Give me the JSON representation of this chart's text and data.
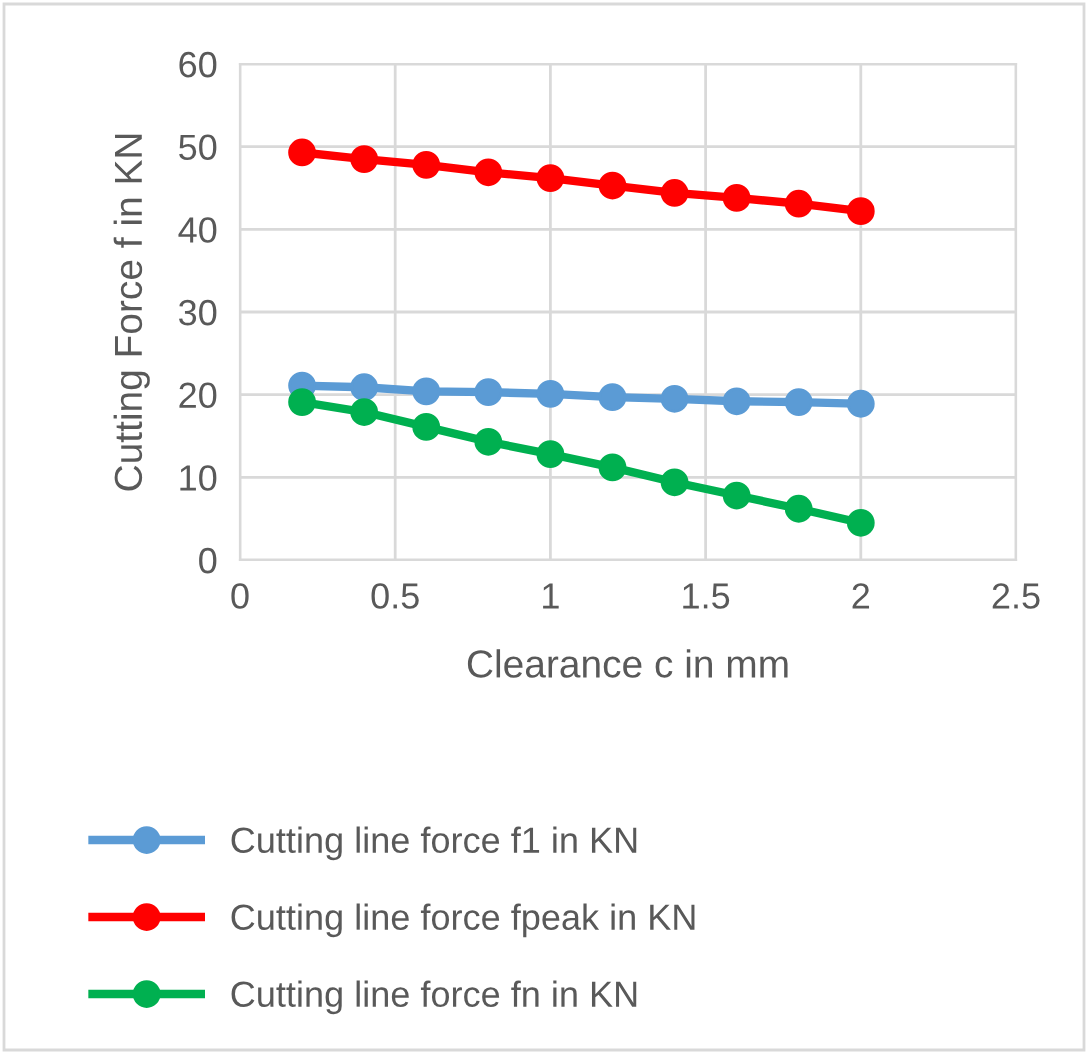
{
  "chart_data": {
    "type": "line",
    "xlabel": "Clearance c in mm",
    "ylabel": "Cutting Force f in KN",
    "x": [
      0.2,
      0.4,
      0.6,
      0.8,
      1.0,
      1.2,
      1.4,
      1.6,
      1.8,
      2.0
    ],
    "series": [
      {
        "name": "Cutting line force f1 in KN",
        "color": "#5b9bd5",
        "values": [
          21.1,
          20.9,
          20.4,
          20.3,
          20.1,
          19.7,
          19.5,
          19.2,
          19.1,
          18.9
        ]
      },
      {
        "name": "Cutting line force fpeak in KN",
        "color": "#ff0000",
        "values": [
          49.3,
          48.5,
          47.8,
          46.9,
          46.2,
          45.3,
          44.4,
          43.8,
          43.1,
          42.2
        ]
      },
      {
        "name": "Cutting line force fn in KN",
        "color": "#00b050",
        "values": [
          19.1,
          17.9,
          16.1,
          14.3,
          12.8,
          11.2,
          9.4,
          7.8,
          6.2,
          4.5
        ]
      }
    ],
    "xlim": [
      0,
      2.5
    ],
    "xticks": [
      0,
      0.5,
      1,
      1.5,
      2,
      2.5
    ],
    "ylim": [
      0,
      60
    ],
    "yticks": [
      0,
      10,
      20,
      30,
      40,
      50,
      60
    ],
    "grid": true,
    "legend": "bottom",
    "marker": "circle",
    "line_style": "solid"
  }
}
